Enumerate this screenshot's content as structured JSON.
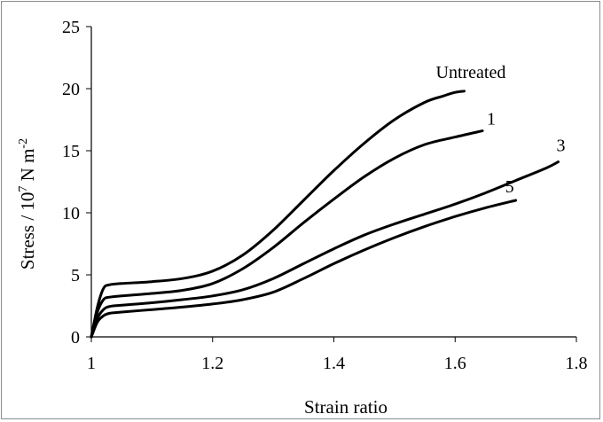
{
  "chart_data": {
    "type": "line",
    "title": "",
    "xlabel": "Strain ratio",
    "ylabel": "Stress / 10",
    "ylabel_sup": "7",
    "ylabel_unit": " N m",
    "ylabel_unit_sup": "-2",
    "xlim": [
      1,
      1.8
    ],
    "ylim": [
      0,
      25
    ],
    "xticks": [
      1,
      1.2,
      1.4,
      1.6,
      1.8
    ],
    "xtick_labels": [
      "1",
      "1.2",
      "1.4",
      "1.6",
      "1.8"
    ],
    "yticks": [
      0,
      5,
      10,
      15,
      20,
      25
    ],
    "ytick_labels": [
      "0",
      "5",
      "10",
      "15",
      "20",
      "25"
    ],
    "grid": false,
    "legend": "none",
    "line_color": "#000000",
    "series": [
      {
        "name": "Untreated",
        "x": [
          1.0,
          1.01,
          1.02,
          1.03,
          1.05,
          1.1,
          1.15,
          1.2,
          1.25,
          1.3,
          1.35,
          1.4,
          1.45,
          1.5,
          1.55,
          1.58,
          1.6,
          1.615
        ],
        "y": [
          0,
          2.4,
          3.9,
          4.2,
          4.3,
          4.45,
          4.7,
          5.3,
          6.6,
          8.6,
          11.0,
          13.4,
          15.6,
          17.5,
          18.9,
          19.4,
          19.7,
          19.8
        ]
      },
      {
        "name": "1",
        "x": [
          1.0,
          1.01,
          1.02,
          1.03,
          1.05,
          1.1,
          1.15,
          1.2,
          1.25,
          1.3,
          1.35,
          1.4,
          1.45,
          1.5,
          1.55,
          1.6,
          1.645
        ],
        "y": [
          0,
          2.0,
          3.0,
          3.2,
          3.3,
          3.5,
          3.75,
          4.3,
          5.5,
          7.2,
          9.2,
          11.1,
          12.9,
          14.4,
          15.5,
          16.1,
          16.6
        ]
      },
      {
        "name": "3",
        "x": [
          1.0,
          1.01,
          1.02,
          1.03,
          1.05,
          1.1,
          1.15,
          1.2,
          1.25,
          1.3,
          1.35,
          1.4,
          1.45,
          1.5,
          1.55,
          1.6,
          1.65,
          1.7,
          1.75,
          1.77
        ],
        "y": [
          0,
          1.5,
          2.2,
          2.45,
          2.55,
          2.75,
          3.0,
          3.3,
          3.8,
          4.7,
          5.9,
          7.1,
          8.2,
          9.1,
          9.9,
          10.7,
          11.6,
          12.6,
          13.6,
          14.1
        ]
      },
      {
        "name": "5",
        "x": [
          1.0,
          1.01,
          1.02,
          1.03,
          1.05,
          1.1,
          1.15,
          1.2,
          1.25,
          1.3,
          1.35,
          1.4,
          1.45,
          1.5,
          1.55,
          1.6,
          1.65,
          1.7
        ],
        "y": [
          0,
          1.2,
          1.7,
          1.9,
          2.0,
          2.2,
          2.4,
          2.65,
          3.0,
          3.6,
          4.7,
          5.9,
          7.0,
          8.0,
          8.9,
          9.7,
          10.4,
          11.0
        ]
      }
    ]
  }
}
